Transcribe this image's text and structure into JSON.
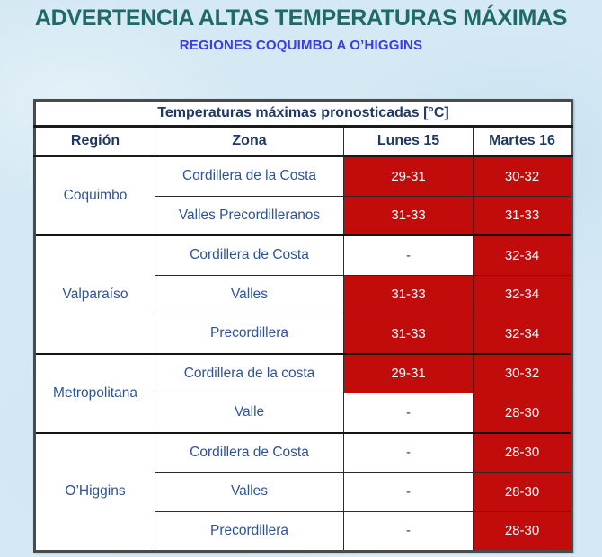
{
  "page": {
    "title": "ADVERTENCIA ALTAS TEMPERATURAS MÁXIMAS",
    "subtitle": "REGIONES COQUIMBO A O’HIGGINS"
  },
  "chart_data": {
    "type": "table",
    "title": "Temperaturas máximas pronosticadas [°C]",
    "columns": [
      "Región",
      "Zona",
      "Lunes 15",
      "Martes 16"
    ],
    "regions": [
      {
        "name": "Coquimbo",
        "rows": [
          {
            "zone": "Cordillera de la Costa",
            "lunes": {
              "value": "29-31",
              "alert": true
            },
            "martes": {
              "value": "30-32",
              "alert": true
            }
          },
          {
            "zone": "Valles Precordilleranos",
            "lunes": {
              "value": "31-33",
              "alert": true
            },
            "martes": {
              "value": "31-33",
              "alert": true
            }
          }
        ]
      },
      {
        "name": "Valparaíso",
        "rows": [
          {
            "zone": "Cordillera de Costa",
            "lunes": {
              "value": "-",
              "alert": false
            },
            "martes": {
              "value": "32-34",
              "alert": true
            }
          },
          {
            "zone": "Valles",
            "lunes": {
              "value": "31-33",
              "alert": true
            },
            "martes": {
              "value": "32-34",
              "alert": true
            }
          },
          {
            "zone": "Precordillera",
            "lunes": {
              "value": "31-33",
              "alert": true
            },
            "martes": {
              "value": "32-34",
              "alert": true
            }
          }
        ]
      },
      {
        "name": "Metropolitana",
        "rows": [
          {
            "zone": "Cordillera de la costa",
            "lunes": {
              "value": "29-31",
              "alert": true
            },
            "martes": {
              "value": "30-32",
              "alert": true
            }
          },
          {
            "zone": "Valle",
            "lunes": {
              "value": "-",
              "alert": false
            },
            "martes": {
              "value": "28-30",
              "alert": true
            }
          }
        ]
      },
      {
        "name": "O’Higgins",
        "rows": [
          {
            "zone": "Cordillera de Costa",
            "lunes": {
              "value": "-",
              "alert": false
            },
            "martes": {
              "value": "28-30",
              "alert": true
            }
          },
          {
            "zone": "Valles",
            "lunes": {
              "value": "-",
              "alert": false
            },
            "martes": {
              "value": "28-30",
              "alert": true
            }
          },
          {
            "zone": "Precordillera",
            "lunes": {
              "value": "-",
              "alert": false
            },
            "martes": {
              "value": "28-30",
              "alert": true
            }
          }
        ]
      }
    ]
  },
  "colors": {
    "background": "#D5E9F4",
    "title_teal": "#1F6A66",
    "subtitle_blue": "#3C3CE6",
    "header_navy": "#1F3864",
    "cell_blue": "#2F5496",
    "alert_red": "#C20C0C"
  }
}
